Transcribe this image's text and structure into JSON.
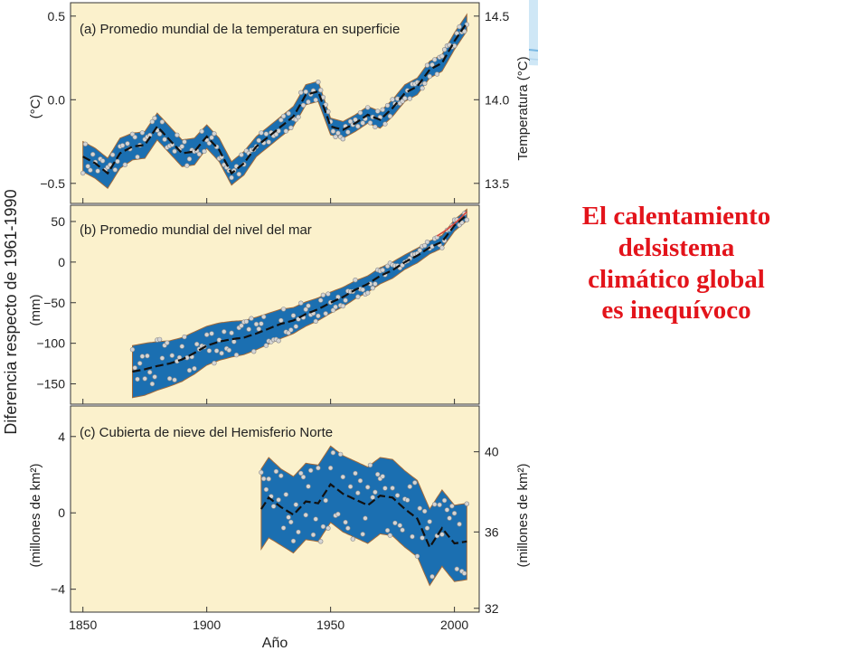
{
  "headline": {
    "line1": "El calentamiento",
    "line2": "delsistema",
    "line3": "climático  global",
    "line4": "es inequívoco",
    "color": "#e3141b"
  },
  "colors": {
    "panel_bg": "#fbf1cc",
    "band": "#1b6fb1",
    "band_edge": "#a06a3b",
    "smooth": "#111111",
    "points": "#d5d5d5",
    "recent": "#d9483b"
  },
  "chart_data": {
    "type": "line",
    "ylabel": "Diferencia respecto de 1961-1990",
    "xlabel": "Año",
    "xlim": [
      1845,
      2010
    ],
    "xticks": [
      1850,
      1900,
      1950,
      2000
    ],
    "panels": [
      {
        "id": "temperature",
        "title": "(a) Promedio mundial de la temperatura en superficie",
        "left_unit": "(°C)",
        "right_label": "Temperatura (°C)",
        "ylim": [
          -0.62,
          0.58
        ],
        "yticks": [
          0.5,
          0.0,
          -0.5
        ],
        "ytick_labels": [
          "0.5",
          "0.0",
          "−0.5"
        ],
        "right_ticks": [
          14.5,
          14.0,
          13.5
        ],
        "right_ticks_left_equiv": [
          0.5,
          0.0,
          -0.5
        ],
        "right_tick_labels": [
          "14.5",
          "14.0",
          "13.5"
        ],
        "series": {
          "x": [
            1850,
            1855,
            1860,
            1865,
            1870,
            1875,
            1880,
            1885,
            1890,
            1895,
            1900,
            1905,
            1910,
            1915,
            1920,
            1925,
            1930,
            1935,
            1940,
            1945,
            1950,
            1955,
            1960,
            1965,
            1970,
            1975,
            1980,
            1985,
            1990,
            1995,
            2000,
            2005
          ],
          "smoothed": [
            -0.34,
            -0.38,
            -0.44,
            -0.32,
            -0.28,
            -0.27,
            -0.16,
            -0.24,
            -0.32,
            -0.31,
            -0.22,
            -0.3,
            -0.44,
            -0.38,
            -0.28,
            -0.22,
            -0.16,
            -0.1,
            0.03,
            0.05,
            -0.16,
            -0.18,
            -0.14,
            -0.09,
            -0.12,
            -0.05,
            0.04,
            0.08,
            0.18,
            0.22,
            0.35,
            0.46
          ],
          "band_halfwidth": [
            0.09,
            0.09,
            0.09,
            0.09,
            0.08,
            0.08,
            0.08,
            0.08,
            0.08,
            0.08,
            0.07,
            0.07,
            0.07,
            0.07,
            0.06,
            0.06,
            0.06,
            0.06,
            0.06,
            0.06,
            0.05,
            0.05,
            0.05,
            0.05,
            0.05,
            0.05,
            0.05,
            0.05,
            0.05,
            0.05,
            0.05,
            0.05
          ]
        }
      },
      {
        "id": "sea_level",
        "title": "(b) Promedio mundial del nivel del mar",
        "left_unit": "(mm)",
        "ylim": [
          -175,
          70
        ],
        "yticks": [
          50,
          0,
          -50,
          -100,
          -150
        ],
        "ytick_labels": [
          "50",
          "0",
          "−50",
          "−100",
          "−150"
        ],
        "series": {
          "x": [
            1870,
            1875,
            1880,
            1885,
            1890,
            1895,
            1900,
            1905,
            1910,
            1915,
            1920,
            1925,
            1930,
            1935,
            1940,
            1945,
            1950,
            1955,
            1960,
            1965,
            1970,
            1975,
            1980,
            1985,
            1990,
            1995,
            2000,
            2005
          ],
          "smoothed": [
            -135,
            -132,
            -128,
            -125,
            -120,
            -112,
            -103,
            -98,
            -95,
            -93,
            -88,
            -82,
            -76,
            -72,
            -64,
            -58,
            -50,
            -43,
            -34,
            -27,
            -17,
            -10,
            0,
            8,
            18,
            25,
            45,
            58
          ],
          "band_halfwidth": [
            32,
            32,
            30,
            28,
            27,
            26,
            24,
            23,
            22,
            21,
            20,
            19,
            18,
            16,
            15,
            14,
            13,
            12,
            11,
            10,
            10,
            10,
            9,
            9,
            8,
            8,
            7,
            7
          ],
          "recent_x": [
            1993,
            1997,
            2001,
            2005
          ],
          "recent": [
            32,
            40,
            50,
            62
          ]
        }
      },
      {
        "id": "snow_cover",
        "title": "(c) Cubierta de nieve del Hemisferio Norte",
        "left_unit": "(millones de km²)",
        "right_label": "(millones de km²)",
        "ylim": [
          -5.2,
          5.6
        ],
        "yticks": [
          4,
          0,
          -4
        ],
        "ytick_labels": [
          "4",
          "0",
          "−4"
        ],
        "right_ticks": [
          40,
          36,
          32
        ],
        "right_ticks_left_equiv": [
          3.2,
          -1.0,
          -5.0
        ],
        "right_tick_labels": [
          "40",
          "36",
          "32"
        ],
        "series": {
          "x": [
            1922,
            1925,
            1930,
            1935,
            1940,
            1945,
            1950,
            1955,
            1960,
            1965,
            1970,
            1975,
            1980,
            1985,
            1990,
            1995,
            2000,
            2005
          ],
          "smoothed": [
            0.2,
            0.8,
            0.3,
            -0.1,
            0.6,
            0.5,
            1.5,
            1.0,
            0.7,
            0.4,
            0.9,
            0.8,
            0.2,
            -0.3,
            -1.8,
            -0.8,
            -1.6,
            -1.5
          ],
          "band_halfwidth": [
            2.1,
            2.1,
            2.0,
            2.0,
            2.0,
            2.0,
            2.0,
            2.0,
            2.0,
            2.0,
            2.0,
            2.0,
            2.0,
            2.0,
            2.0,
            2.0,
            2.0,
            2.0
          ]
        }
      }
    ]
  }
}
